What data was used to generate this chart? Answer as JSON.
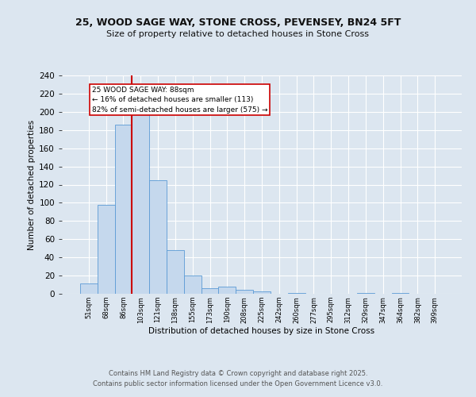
{
  "title_line1": "25, WOOD SAGE WAY, STONE CROSS, PEVENSEY, BN24 5FT",
  "title_line2": "Size of property relative to detached houses in Stone Cross",
  "xlabel": "Distribution of detached houses by size in Stone Cross",
  "ylabel": "Number of detached properties",
  "categories": [
    "51sqm",
    "68sqm",
    "86sqm",
    "103sqm",
    "121sqm",
    "138sqm",
    "155sqm",
    "173sqm",
    "190sqm",
    "208sqm",
    "225sqm",
    "242sqm",
    "260sqm",
    "277sqm",
    "295sqm",
    "312sqm",
    "329sqm",
    "347sqm",
    "364sqm",
    "382sqm",
    "399sqm"
  ],
  "bar_heights": [
    11,
    98,
    186,
    200,
    125,
    48,
    20,
    6,
    8,
    4,
    3,
    0,
    1,
    0,
    0,
    0,
    1,
    0,
    1,
    0,
    0
  ],
  "bar_color": "#c5d8ed",
  "bar_edge_color": "#5b9bd5",
  "property_label": "25 WOOD SAGE WAY: 88sqm",
  "annotation_line2": "← 16% of detached houses are smaller (113)",
  "annotation_line3": "82% of semi-detached houses are larger (575) →",
  "vline_color": "#cc0000",
  "annotation_box_color": "#ffffff",
  "annotation_box_edge": "#cc0000",
  "footer_line1": "Contains HM Land Registry data © Crown copyright and database right 2025.",
  "footer_line2": "Contains public sector information licensed under the Open Government Licence v3.0.",
  "ylim": [
    0,
    240
  ],
  "yticks": [
    0,
    20,
    40,
    60,
    80,
    100,
    120,
    140,
    160,
    180,
    200,
    220,
    240
  ],
  "fig_bg_color": "#dce6f0",
  "plot_bg_color": "#dce6f0",
  "grid_color": "#ffffff"
}
